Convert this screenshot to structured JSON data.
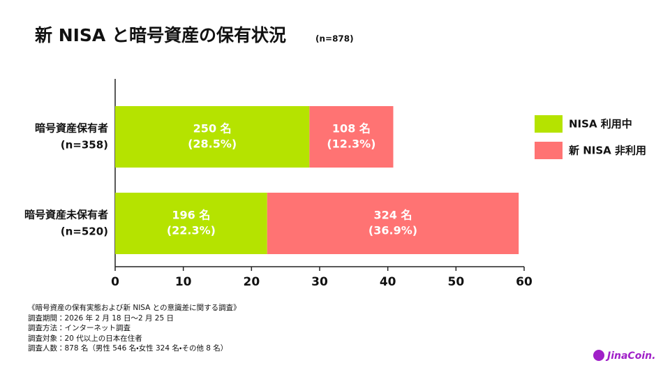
{
  "chart_data": {
    "type": "stacked-barh",
    "title": "新 NISA と暗号資産の保有状況",
    "subtitle": "(n=878)",
    "categories": [
      "暗号資産保有者",
      "暗号資産未保有者"
    ],
    "category_notes": [
      "(n=358)",
      "(n=520)"
    ],
    "series": [
      {
        "name": "NISA 利用中",
        "color": "#b5e300",
        "values": [
          28.5,
          22.3
        ],
        "value_labels": [
          "(28.5%)",
          "(22.3%)"
        ],
        "count_labels": [
          "250 名",
          "196 名"
        ]
      },
      {
        "name": "新 NISA 非利用",
        "color": "#ff7373",
        "values": [
          12.3,
          36.9
        ],
        "value_labels": [
          "(12.3%)",
          "(36.9%)"
        ],
        "count_labels": [
          "108 名",
          "324 名"
        ]
      }
    ],
    "xlim": [
      0,
      60
    ],
    "xticks": [
      0,
      10,
      20,
      30,
      40,
      50,
      60
    ],
    "legend": "right",
    "grid": false
  },
  "notes": {
    "heading": "《暗号資産の保有実態および新 NISA との意識差に関する調査》",
    "lines": [
      "調査期間：2026 年 2 月 18 日〜2 月 25 日",
      "調査方法：インターネット調査",
      "調査対象：20 代以上の日本在住者",
      "調査人数：878 名（男性 546 名・女性 324 名・その他 8 名）"
    ]
  },
  "logo": "JinaCoin."
}
